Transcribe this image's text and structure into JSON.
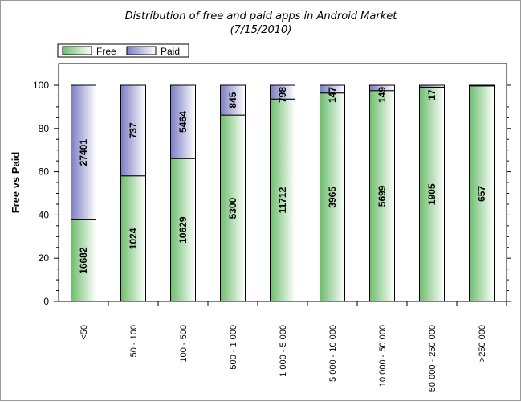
{
  "chart_data": {
    "type": "bar",
    "stacked": true,
    "title_line1": "Distribution of free and paid apps in Android Market",
    "title_line2": "(7/15/2010)",
    "ylabel": "Free vs Paid",
    "xlabel": "",
    "ylim": [
      0,
      100
    ],
    "yticks": [
      0,
      20,
      40,
      60,
      80,
      100
    ],
    "grid": false,
    "legend_position": "top-left",
    "categories": [
      "<50",
      "50 - 100",
      "100 - 500",
      "500 - 1 000",
      "1 000 - 5 000",
      "5 000 - 10 000",
      "10 000 - 50 000",
      "50 000 - 250 000",
      ">250 000"
    ],
    "series": [
      {
        "name": "Free",
        "color": "#79c479",
        "percent": [
          37.8,
          58.1,
          66.1,
          86.2,
          93.6,
          96.4,
          97.5,
          99.1,
          99.7
        ],
        "labels": [
          "16682",
          "1024",
          "10629",
          "5300",
          "11712",
          "3965",
          "5699",
          "1905",
          "657"
        ]
      },
      {
        "name": "Paid",
        "color": "#8686c8",
        "percent": [
          62.2,
          41.9,
          33.9,
          13.8,
          6.4,
          3.6,
          2.5,
          0.9,
          0.3
        ],
        "labels": [
          "27401",
          "737",
          "5464",
          "845",
          "798",
          "147",
          "149",
          "17",
          ""
        ]
      }
    ]
  }
}
